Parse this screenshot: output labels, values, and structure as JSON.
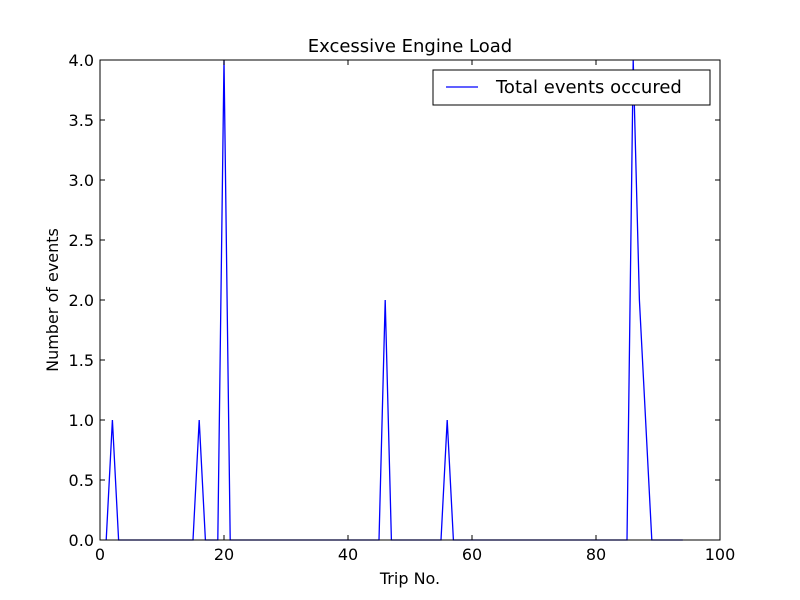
{
  "chart_data": {
    "type": "line",
    "title": "Excessive Engine Load",
    "xlabel": "Trip No.",
    "ylabel": "Number of events",
    "xlim": [
      0,
      100
    ],
    "ylim": [
      0,
      4.0
    ],
    "xticks": [
      0,
      20,
      40,
      60,
      80,
      100
    ],
    "xtick_labels": [
      "0",
      "20",
      "40",
      "60",
      "80",
      "100"
    ],
    "yticks": [
      0,
      0.5,
      1.0,
      1.5,
      2.0,
      2.5,
      3.0,
      3.5,
      4.0
    ],
    "ytick_labels": [
      "0.0",
      "0.5",
      "1.0",
      "1.5",
      "2.0",
      "2.5",
      "3.0",
      "3.5",
      "4.0"
    ],
    "grid": false,
    "legend_position": "top-right",
    "series": [
      {
        "name": "Total events occured",
        "color": "#0000ff",
        "x": [
          1,
          2,
          3,
          15,
          16,
          17,
          19,
          20,
          21,
          45,
          46,
          47,
          55,
          56,
          57,
          85,
          86,
          87,
          89,
          94
        ],
        "y": [
          0,
          1,
          0,
          0,
          1,
          0,
          0,
          4,
          0,
          0,
          2,
          0,
          0,
          1,
          0,
          0,
          4,
          2,
          0,
          0
        ]
      }
    ]
  }
}
